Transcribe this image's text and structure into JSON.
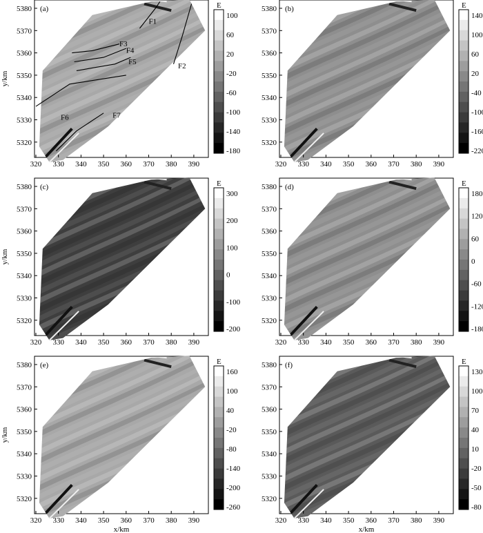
{
  "figure": {
    "panels": [
      {
        "id": "a",
        "label": "(a)",
        "unit": "E",
        "colorbar": [
          "100",
          "60",
          "20",
          "-20",
          "-60",
          "-100",
          "-140",
          "-180"
        ],
        "tone": "light",
        "faults": [
          {
            "name": "F1"
          },
          {
            "name": "F2"
          },
          {
            "name": "F3"
          },
          {
            "name": "F4"
          },
          {
            "name": "F5"
          },
          {
            "name": "F6"
          },
          {
            "name": "F7"
          }
        ]
      },
      {
        "id": "b",
        "label": "(b)",
        "unit": "E",
        "colorbar": [
          "140",
          "100",
          "60",
          "20",
          "-40",
          "-100",
          "-160",
          "-220"
        ],
        "tone": "mid"
      },
      {
        "id": "c",
        "label": "(c)",
        "unit": "E",
        "colorbar": [
          "300",
          "200",
          "100",
          "0",
          "-100",
          "-200"
        ],
        "tone": "dark"
      },
      {
        "id": "d",
        "label": "(d)",
        "unit": "E",
        "colorbar": [
          "180",
          "120",
          "60",
          "0",
          "-60",
          "-120",
          "-180"
        ],
        "tone": "mid"
      },
      {
        "id": "e",
        "label": "(e)",
        "unit": "E",
        "colorbar": [
          "160",
          "100",
          "40",
          "-20",
          "-80",
          "-140",
          "-200",
          "-260"
        ],
        "tone": "light"
      },
      {
        "id": "f",
        "label": "(f)",
        "unit": "E",
        "colorbar": [
          "130",
          "100",
          "70",
          "40",
          "10",
          "-20",
          "-50",
          "-80"
        ],
        "tone": "middark"
      }
    ],
    "x_ticks": [
      "320",
      "330",
      "340",
      "350",
      "360",
      "370",
      "380",
      "390"
    ],
    "y_ticks": [
      "5380",
      "5370",
      "5360",
      "5350",
      "5340",
      "5330",
      "5320"
    ],
    "xlabel": "x/km",
    "ylabel": "y/km",
    "colors": {
      "light": "#a8a8a8",
      "mid": "#8e8e8e",
      "dark": "#3e3e3e",
      "middark": "#5a5a5a"
    }
  }
}
